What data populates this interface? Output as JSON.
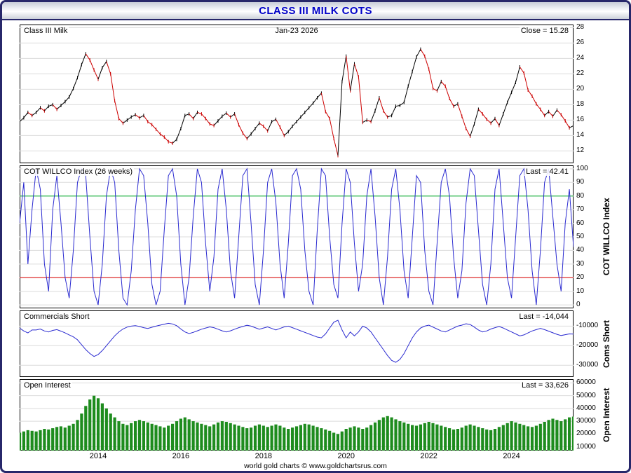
{
  "window": {
    "title": "CLASS III MILK COTS"
  },
  "footer": {
    "text": "world gold charts © www.goldchartsrus.com"
  },
  "x_axis": {
    "tick_labels": [
      "2014",
      "2016",
      "2018",
      "2020",
      "2022",
      "2024"
    ],
    "tick_years": [
      2014,
      2016,
      2018,
      2020,
      2022,
      2024
    ],
    "x_start": 2012.6,
    "x_step_years": 0.1,
    "x_shared": true
  },
  "chart_data": [
    {
      "type": "line",
      "subtype": "price_bars",
      "title": "Class III Milk",
      "date_label": "Jan-23  2026",
      "value_label": "Close = 15.28",
      "last_value": 15.28,
      "ylim": [
        10.4,
        28.4
      ],
      "yticks": [
        28,
        26,
        24,
        22,
        20,
        18,
        16,
        14,
        12
      ],
      "ytick_labels": [
        "28",
        "26",
        "24",
        "22",
        "20",
        "18",
        "16",
        "14",
        "12"
      ],
      "up_color": "#000000",
      "down_color": "#cc0000",
      "grid": true,
      "values": [
        15.8,
        16.3,
        17.0,
        16.6,
        17.0,
        17.6,
        17.2,
        17.8,
        18.0,
        17.4,
        17.9,
        18.4,
        19.0,
        20.1,
        21.5,
        23.2,
        24.6,
        23.8,
        22.5,
        21.3,
        22.8,
        23.6,
        22.0,
        18.5,
        16.2,
        15.6,
        16.0,
        16.4,
        16.7,
        16.3,
        16.6,
        15.8,
        15.4,
        14.8,
        14.2,
        13.8,
        13.2,
        13.0,
        13.5,
        14.9,
        16.6,
        16.8,
        16.2,
        17.0,
        16.8,
        16.2,
        15.5,
        15.3,
        15.9,
        16.5,
        16.9,
        16.4,
        16.8,
        15.4,
        14.3,
        13.6,
        14.2,
        14.9,
        15.6,
        15.2,
        14.6,
        15.8,
        16.1,
        15.1,
        14.0,
        14.5,
        15.2,
        15.8,
        16.4,
        17.0,
        17.6,
        18.2,
        18.9,
        19.5,
        17.1,
        16.2,
        13.6,
        11.4,
        21.0,
        24.3,
        19.8,
        23.3,
        21.6,
        15.7,
        16.0,
        15.8,
        17.2,
        18.9,
        17.2,
        16.4,
        16.6,
        17.8,
        17.9,
        18.3,
        20.4,
        22.3,
        24.2,
        25.2,
        24.3,
        22.6,
        20.1,
        19.8,
        21.0,
        20.4,
        18.8,
        17.8,
        18.1,
        16.5,
        14.9,
        13.9,
        15.5,
        17.4,
        16.8,
        16.1,
        15.6,
        16.2,
        15.3,
        16.8,
        18.3,
        19.6,
        20.9,
        22.9,
        22.1,
        19.9,
        19.1,
        18.1,
        17.4,
        16.6,
        17.1,
        16.5,
        17.3,
        16.7,
        15.9,
        15.0,
        15.28
      ]
    },
    {
      "type": "line",
      "title": "COT WILLCO Index (26 weeks)",
      "axis_title": "COT WILLCO Index",
      "value_label": "Last = 42.41",
      "last_value": 42.41,
      "ylim": [
        -2.5,
        102.5
      ],
      "yticks": [
        100,
        90,
        80,
        70,
        60,
        50,
        40,
        30,
        20,
        10,
        0
      ],
      "ytick_labels": [
        "100",
        "90",
        "80",
        "70",
        "60",
        "50",
        "40",
        "30",
        "20",
        "10",
        "0"
      ],
      "line_color": "#2a2ad0",
      "grid": true,
      "ref_lines": [
        {
          "y": 80,
          "color": "#2db84d"
        },
        {
          "y": 20,
          "color": "#e03030"
        }
      ],
      "values": [
        60,
        90,
        30,
        70,
        100,
        85,
        30,
        10,
        70,
        95,
        60,
        20,
        5,
        40,
        90,
        100,
        95,
        50,
        10,
        0,
        30,
        80,
        100,
        90,
        40,
        5,
        0,
        25,
        70,
        100,
        95,
        60,
        15,
        0,
        10,
        55,
        95,
        100,
        80,
        30,
        0,
        20,
        65,
        100,
        90,
        45,
        10,
        35,
        85,
        100,
        70,
        25,
        5,
        50,
        95,
        100,
        60,
        15,
        0,
        40,
        90,
        100,
        75,
        30,
        5,
        45,
        95,
        100,
        85,
        40,
        10,
        0,
        55,
        100,
        95,
        50,
        15,
        5,
        60,
        100,
        90,
        45,
        10,
        30,
        80,
        100,
        65,
        20,
        0,
        35,
        85,
        100,
        70,
        25,
        5,
        50,
        95,
        90,
        40,
        10,
        0,
        45,
        90,
        100,
        80,
        35,
        5,
        25,
        75,
        100,
        95,
        55,
        15,
        0,
        30,
        85,
        100,
        60,
        20,
        5,
        50,
        95,
        100,
        70,
        25,
        0,
        40,
        90,
        100,
        65,
        30,
        10,
        60,
        85,
        42.41
      ]
    },
    {
      "type": "line",
      "title": "Commercials Short",
      "axis_title": "Coms Short",
      "value_label": "Last = -14,044",
      "last_value": -14044,
      "ylim": [
        -36000,
        -2000
      ],
      "yticks": [
        -10000,
        -20000,
        -30000
      ],
      "ytick_labels": [
        "-10000",
        "-20000",
        "-30000"
      ],
      "line_color": "#2a2ad0",
      "grid": true,
      "values": [
        -11000,
        -12500,
        -13500,
        -12000,
        -12000,
        -11500,
        -12500,
        -13000,
        -12200,
        -11800,
        -12600,
        -13500,
        -14500,
        -15500,
        -17000,
        -19500,
        -22000,
        -24000,
        -25500,
        -24500,
        -22500,
        -20000,
        -17500,
        -15000,
        -13000,
        -11500,
        -10500,
        -10000,
        -9800,
        -10200,
        -10800,
        -11200,
        -10600,
        -10000,
        -9500,
        -9000,
        -8600,
        -8900,
        -9800,
        -11500,
        -13000,
        -13800,
        -13200,
        -12400,
        -11600,
        -11000,
        -10400,
        -10800,
        -11600,
        -12400,
        -13000,
        -12400,
        -11600,
        -10800,
        -10200,
        -9600,
        -10000,
        -10800,
        -11600,
        -11000,
        -10400,
        -11200,
        -12000,
        -11200,
        -10400,
        -10000,
        -10800,
        -11600,
        -12400,
        -13200,
        -14000,
        -14800,
        -15600,
        -16000,
        -14000,
        -11000,
        -8000,
        -7000,
        -12000,
        -16000,
        -13000,
        -15000,
        -13000,
        -10000,
        -11000,
        -13000,
        -16000,
        -19000,
        -22000,
        -25000,
        -27500,
        -28500,
        -27000,
        -24000,
        -20000,
        -16000,
        -13000,
        -11000,
        -10000,
        -9500,
        -10500,
        -11500,
        -12500,
        -13000,
        -12000,
        -11000,
        -10000,
        -9500,
        -8800,
        -9200,
        -10500,
        -12000,
        -13000,
        -12500,
        -11500,
        -10800,
        -10200,
        -11000,
        -12000,
        -13000,
        -14000,
        -15000,
        -14500,
        -13500,
        -12500,
        -11800,
        -11200,
        -11800,
        -12600,
        -13400,
        -14200,
        -14800,
        -14400,
        -14000,
        -14044
      ]
    },
    {
      "type": "bar",
      "title": "Open Interest",
      "axis_title": "Open Interest",
      "value_label": "Last = 33,626",
      "last_value": 33626,
      "ylim": [
        7000,
        63000
      ],
      "yticks": [
        60000,
        50000,
        40000,
        30000,
        20000,
        10000
      ],
      "ytick_labels": [
        "60000",
        "50000",
        "40000",
        "30000",
        "20000",
        "10000"
      ],
      "bar_color": "#1e8c1e",
      "grid": true,
      "values": [
        21000,
        22000,
        23000,
        22500,
        22000,
        23000,
        24000,
        23500,
        24500,
        25500,
        26000,
        25000,
        26500,
        28000,
        31000,
        36000,
        42000,
        47000,
        50000,
        48000,
        44000,
        40000,
        36000,
        33000,
        30000,
        28000,
        27000,
        28500,
        30000,
        31000,
        30000,
        29000,
        28000,
        27000,
        26000,
        25000,
        26500,
        28000,
        30000,
        32000,
        33000,
        31500,
        30000,
        29000,
        28000,
        27000,
        26000,
        27500,
        29000,
        30000,
        29500,
        28500,
        27500,
        26500,
        25500,
        24500,
        25000,
        26500,
        27500,
        26500,
        25500,
        26500,
        27500,
        26500,
        25000,
        24000,
        25000,
        26000,
        27000,
        28000,
        27500,
        26500,
        25500,
        24500,
        23500,
        22500,
        21000,
        20000,
        22000,
        24000,
        25000,
        26000,
        25000,
        24000,
        25000,
        27000,
        29000,
        31000,
        33000,
        34000,
        33000,
        31500,
        30000,
        29000,
        28000,
        27000,
        26500,
        27500,
        28500,
        29500,
        28500,
        27500,
        26500,
        25500,
        24500,
        23500,
        24000,
        25000,
        26500,
        27500,
        26500,
        25500,
        24500,
        23500,
        23000,
        24000,
        25500,
        27000,
        28500,
        30000,
        29000,
        28000,
        27000,
        26000,
        25500,
        26500,
        28000,
        29500,
        31000,
        32000,
        31000,
        30000,
        31500,
        33000,
        33626
      ]
    }
  ]
}
